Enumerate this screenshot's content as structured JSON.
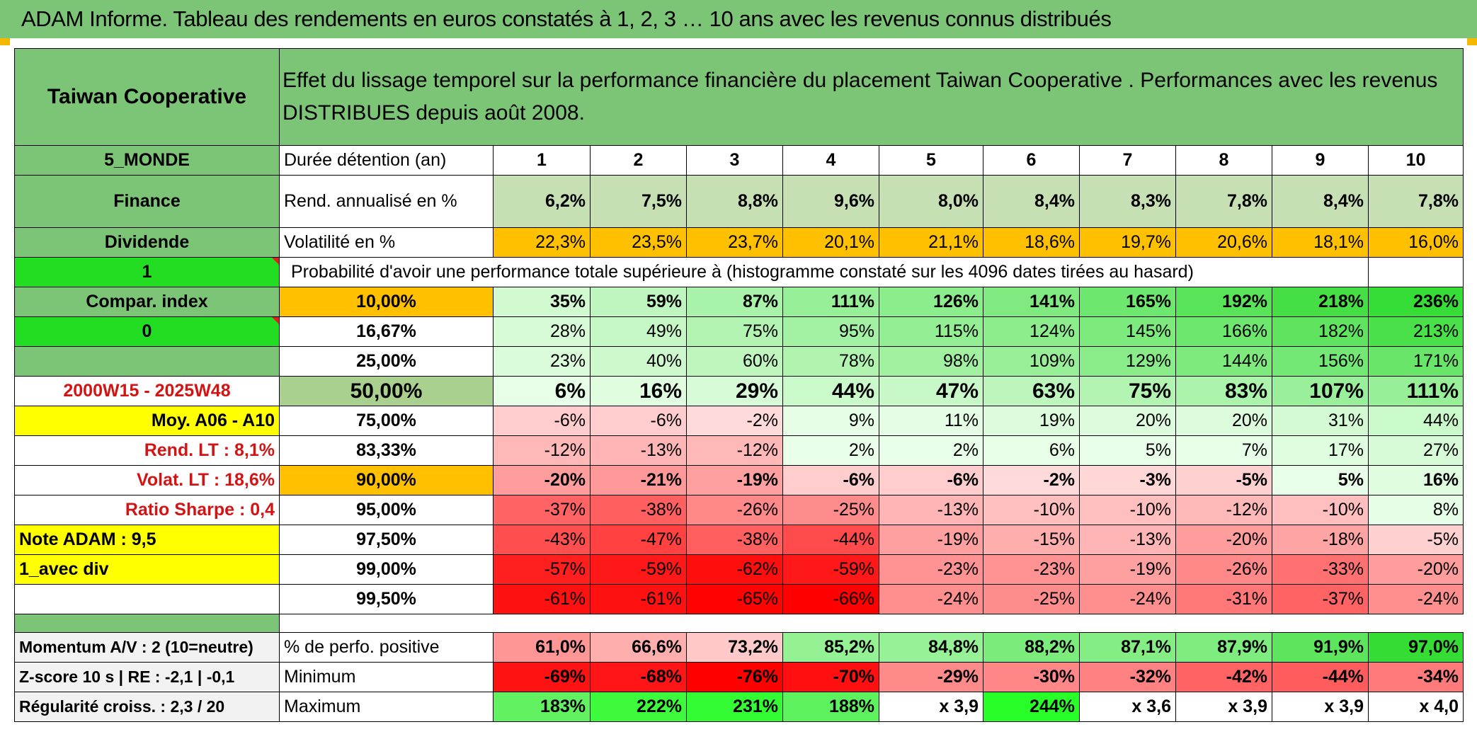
{
  "title": "ADAM Informe. Tableau des rendements en euros constatés à 1, 2, 3 … 10 ans avec les revenus connus distribués",
  "header": {
    "fund_name": "Taiwan Cooperative",
    "description": "Effet du lissage temporel sur la performance financière du placement Taiwan Cooperative . Performances avec les revenus DISTRIBUES depuis août 2008."
  },
  "side": {
    "zone": "5_MONDE",
    "sector": "Finance",
    "dividend": "Dividende",
    "value_one": "1",
    "compar_index": "Compar. index",
    "value_zero": "0",
    "period": "2000W15 - 2025W48",
    "moy": "Moy. A06 - A10",
    "rend_lt": "Rend. LT :   8,1%",
    "volat_lt": "Volat. LT :   18,6%",
    "sharpe": "Ratio Sharpe :   0,4",
    "note": "Note ADAM : 9,5",
    "avec_div": "1_avec div",
    "momentum": "Momentum A/V : 2 (10=neutre)",
    "zscore": "Z-score 10 s | RE : -2,1 | -0,1",
    "regularite": "Régularité croiss. : 2,3 / 20"
  },
  "labels": {
    "duree": "Durée détention (an)",
    "rend": "Rend. annualisé en %",
    "vol": "Volatilité en %",
    "proba": "Probabilité d'avoir une performance totale supérieure à (histogramme constaté sur les 4096 dates tirées au hasard)",
    "positive": "% de perfo. positive",
    "minimum": "Minimum",
    "maximum": "Maximum"
  },
  "years": [
    "1",
    "2",
    "3",
    "4",
    "5",
    "6",
    "7",
    "8",
    "9",
    "10"
  ],
  "rend_values": [
    "6,2%",
    "7,5%",
    "8,8%",
    "9,6%",
    "8,0%",
    "8,4%",
    "8,3%",
    "7,8%",
    "8,4%",
    "7,8%"
  ],
  "vol_values": [
    "22,3%",
    "23,5%",
    "23,7%",
    "20,1%",
    "21,1%",
    "18,6%",
    "19,7%",
    "20,6%",
    "18,1%",
    "16,0%"
  ],
  "quantiles": [
    {
      "p": "10,00%",
      "vals": [
        "35%",
        "59%",
        "87%",
        "111%",
        "126%",
        "141%",
        "165%",
        "192%",
        "218%",
        "236%"
      ]
    },
    {
      "p": "16,67%",
      "vals": [
        "28%",
        "49%",
        "75%",
        "95%",
        "115%",
        "124%",
        "145%",
        "166%",
        "182%",
        "213%"
      ]
    },
    {
      "p": "25,00%",
      "vals": [
        "23%",
        "40%",
        "60%",
        "78%",
        "98%",
        "109%",
        "129%",
        "144%",
        "156%",
        "171%"
      ]
    },
    {
      "p": "50,00%",
      "vals": [
        "6%",
        "16%",
        "29%",
        "44%",
        "47%",
        "63%",
        "75%",
        "83%",
        "107%",
        "111%"
      ]
    },
    {
      "p": "75,00%",
      "vals": [
        "-6%",
        "-6%",
        "-2%",
        "9%",
        "11%",
        "19%",
        "20%",
        "20%",
        "31%",
        "44%"
      ]
    },
    {
      "p": "83,33%",
      "vals": [
        "-12%",
        "-13%",
        "-12%",
        "2%",
        "2%",
        "6%",
        "5%",
        "7%",
        "17%",
        "27%"
      ]
    },
    {
      "p": "90,00%",
      "vals": [
        "-20%",
        "-21%",
        "-19%",
        "-6%",
        "-6%",
        "-2%",
        "-3%",
        "-5%",
        "5%",
        "16%"
      ]
    },
    {
      "p": "95,00%",
      "vals": [
        "-37%",
        "-38%",
        "-26%",
        "-25%",
        "-13%",
        "-10%",
        "-10%",
        "-12%",
        "-10%",
        "8%"
      ]
    },
    {
      "p": "97,50%",
      "vals": [
        "-43%",
        "-47%",
        "-38%",
        "-44%",
        "-19%",
        "-15%",
        "-13%",
        "-20%",
        "-18%",
        "-5%"
      ]
    },
    {
      "p": "99,00%",
      "vals": [
        "-57%",
        "-59%",
        "-62%",
        "-59%",
        "-23%",
        "-23%",
        "-19%",
        "-26%",
        "-33%",
        "-20%"
      ]
    },
    {
      "p": "99,50%",
      "vals": [
        "-61%",
        "-61%",
        "-65%",
        "-66%",
        "-24%",
        "-25%",
        "-24%",
        "-31%",
        "-37%",
        "-24%"
      ]
    }
  ],
  "positive_values": [
    "61,0%",
    "66,6%",
    "73,2%",
    "85,2%",
    "84,8%",
    "88,2%",
    "87,1%",
    "87,9%",
    "91,9%",
    "97,0%"
  ],
  "minimum_values": [
    "-69%",
    "-68%",
    "-76%",
    "-70%",
    "-29%",
    "-30%",
    "-32%",
    "-42%",
    "-44%",
    "-34%"
  ],
  "maximum_values": [
    "183%",
    "222%",
    "231%",
    "188%",
    "x 3,9",
    "244%",
    "x 3,6",
    "x 3,9",
    "x 3,9",
    "x 4,0"
  ],
  "colors": {
    "header_green": "#7cc576",
    "bright_green": "#22dd22",
    "yellow": "#ffff00",
    "orange": "#ffc000",
    "rend_green": "#c6e0b4",
    "median_green": "#a9d08e",
    "text_red": "#d21414"
  }
}
